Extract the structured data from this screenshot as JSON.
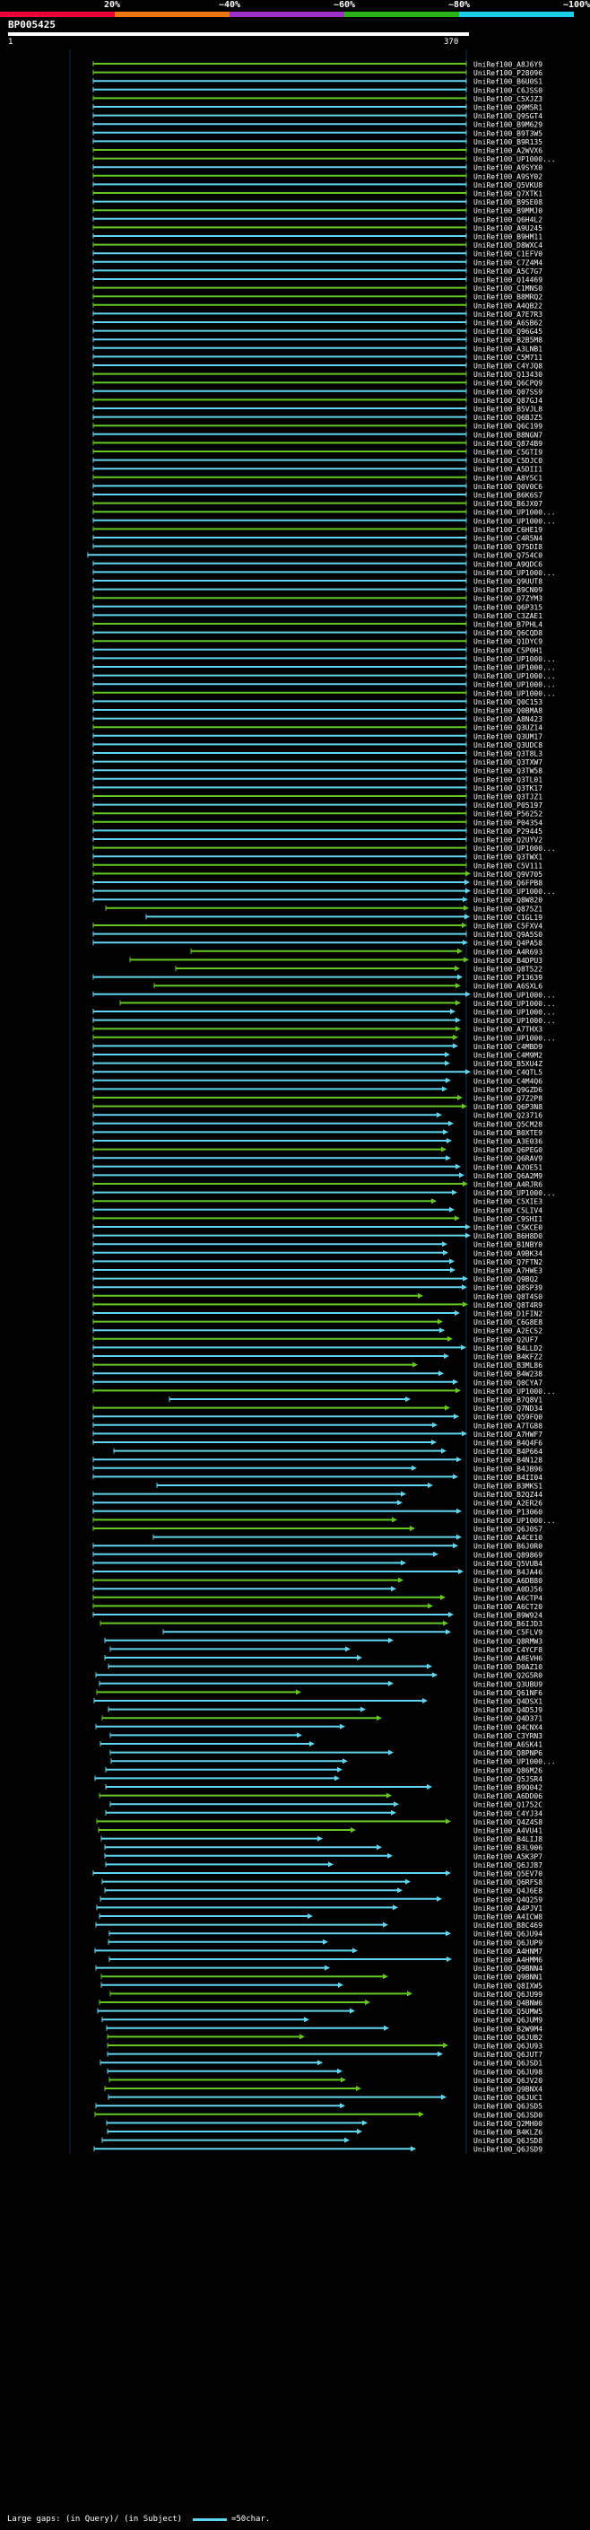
{
  "legend": {
    "segments": [
      {
        "label": "",
        "color": "#e8003b"
      },
      {
        "label": "20%",
        "color": "#f0780a"
      },
      {
        "label": "~40%",
        "color": "#a030c8"
      },
      {
        "label": "~60%",
        "color": "#28b414"
      },
      {
        "label": "~80%",
        "color": "#18d0e8"
      },
      {
        "label": "~100%",
        "color": ""
      }
    ]
  },
  "query": {
    "name": "BP005425",
    "start_label": "1",
    "end_label": "370"
  },
  "colors": {
    "cyan": "#5fd7f0",
    "green": "#64c81e",
    "white": "#ffffff",
    "background": "#000000"
  },
  "hits": [
    "UniRef100_A8J6Y9",
    "UniRef100_P28096",
    "UniRef100_B6U0S1",
    "UniRef100_C6JSS0",
    "UniRef100_C5XJZ3",
    "UniRef100_Q9M5R1",
    "UniRef100_Q9SGT4",
    "UniRef100_B9M629",
    "UniRef100_B9T3W5",
    "UniRef100_B9R135",
    "UniRef100_A2WVX6",
    "UniRef100_UP1000...",
    "UniRef100_A9SYX0",
    "UniRef100_A9SY02",
    "UniRef100_Q5VKU8",
    "UniRef100_Q7XTK1",
    "UniRef100_B9SE08",
    "UniRef100_B9MMJ0",
    "UniRef100_Q6H4L2",
    "UniRef100_A9U245",
    "UniRef100_B9HM11",
    "UniRef100_D8WXC4",
    "UniRef100_C1EFV0",
    "UniRef100_C7Z4M4",
    "UniRef100_A5C7G7",
    "UniRef100_Q14469",
    "UniRef100_C1MNS0",
    "UniRef100_B8MRQ2",
    "UniRef100_A4QB22",
    "UniRef100_A7E7R3",
    "UniRef100_A6SB62",
    "UniRef100_Q96G45",
    "UniRef100_B2B5M8",
    "UniRef100_A3LNB1",
    "UniRef100_C5M711",
    "UniRef100_C4YJQ8",
    "UniRef100_Q13430",
    "UniRef100_Q6CPQ9",
    "UniRef100_Q07SS9",
    "UniRef100_Q87GJ4",
    "UniRef100_B5VJL8",
    "UniRef100_Q6BJZ5",
    "UniRef100_Q6C199",
    "UniRef100_B8NGN7",
    "UniRef100_Q874B9",
    "UniRef100_C5GTI9",
    "UniRef100_C5DJC0",
    "UniRef100_A5DII1",
    "UniRef100_A8Y5C1",
    "UniRef100_Q0V0C6",
    "UniRef100_B6K6S7",
    "UniRef100_B6JX07",
    "UniRef100_UP1000...",
    "UniRef100_UP1000...",
    "UniRef100_C6HE19",
    "UniRef100_C4R5N4",
    "UniRef100_Q75DI8",
    "UniRef100_Q754C0",
    "UniRef100_A9QDC6",
    "UniRef100_UP1000...",
    "UniRef100_Q9UUT8",
    "UniRef100_B9CN09",
    "UniRef100_Q7ZYM3",
    "UniRef100_Q6P315",
    "UniRef100_C3ZAE1",
    "UniRef100_B7PHL4",
    "UniRef100_Q6CQD8",
    "UniRef100_Q1DYC9",
    "UniRef100_C5P0H1",
    "UniRef100_UP1000...",
    "UniRef100_UP1000...",
    "UniRef100_UP1000...",
    "UniRef100_UP1000...",
    "UniRef100_UP1000...",
    "UniRef100_Q0C153",
    "UniRef100_Q0BMA8",
    "UniRef100_A8N423",
    "UniRef100_Q3UZ14",
    "UniRef100_Q3UM17",
    "UniRef100_Q3UDC8",
    "UniRef100_Q3T8L3",
    "UniRef100_Q3TXW7",
    "UniRef100_Q3TW58",
    "UniRef100_Q3TL01",
    "UniRef100_Q3TK17",
    "UniRef100_Q3TJZ1",
    "UniRef100_P05197",
    "UniRef100_P56252",
    "UniRef100_P04354",
    "UniRef100_P29445",
    "UniRef100_Q2UYV2",
    "UniRef100_UP1000...",
    "UniRef100_Q3TWX1",
    "UniRef100_C5V111",
    "UniRef100_Q9V705",
    "UniRef100_Q6FPB8",
    "UniRef100_UP1000...",
    "UniRef100_Q8W820",
    "UniRef100_Q875Z1",
    "UniRef100_C1GL19",
    "UniRef100_C5FXV4",
    "UniRef100_Q9A5S0",
    "UniRef100_Q4PA58",
    "UniRef100_A4R693",
    "UniRef100_B4DPU3",
    "UniRef100_Q8T522",
    "UniRef100_P13639",
    "UniRef100_A6SXL6",
    "UniRef100_UP1000...",
    "UniRef100_UP1000...",
    "UniRef100_UP1000...",
    "UniRef100_UP1000...",
    "UniRef100_A7THX3",
    "UniRef100_UP1000...",
    "UniRef100_C4MBD9",
    "UniRef100_C4M9M2",
    "UniRef100_B5XU4Z",
    "UniRef100_C4QTL5",
    "UniRef100_C4M4Q6",
    "UniRef100_Q9GZD6",
    "UniRef100_Q7Z2P8",
    "UniRef100_Q6P3N8",
    "UniRef100_Q23716",
    "UniRef100_Q5CM28",
    "UniRef100_B0XTE9",
    "UniRef100_A3E036",
    "UniRef100_Q6PEG0",
    "UniRef100_Q6RAV9",
    "UniRef100_A2OE51",
    "UniRef100_Q6A2M9",
    "UniRef100_A4RJR6",
    "UniRef100_UP1000...",
    "UniRef100_C5XIE3",
    "UniRef100_C5LIV4",
    "UniRef100_C9SHI1",
    "UniRef100_C5KCE0",
    "UniRef100_B6H8D0",
    "UniRef100_B1NBY0",
    "UniRef100_A9BK34",
    "UniRef100_Q7FTN2",
    "UniRef100_A7HWE3",
    "UniRef100_Q9BQ2",
    "UniRef100_Q8SP39",
    "UniRef100_Q8T4S0",
    "UniRef100_Q8T4R9",
    "UniRef100_D1FIN2",
    "UniRef100_C6G8E8",
    "UniRef100_A2ECS2",
    "UniRef100_Q2UF7",
    "UniRef100_B4LLD2",
    "UniRef100_B4KFZ2",
    "UniRef100_B3ML86",
    "UniRef100_B4W238",
    "UniRef100_Q0CYA7",
    "UniRef100_UP1000...",
    "UniRef100_B7Q8V1",
    "UniRef100_Q7ND34",
    "UniRef100_Q59FQ0",
    "UniRef100_A7TG88",
    "UniRef100_A7HWF7",
    "UniRef100_B4Q4F6",
    "UniRef100_B4P664",
    "UniRef100_B4N128",
    "UniRef100_B4JB96",
    "UniRef100_B4II04",
    "UniRef100_B3MKS1",
    "UniRef100_B2QZ44",
    "UniRef100_A2ER26",
    "UniRef100_P13060",
    "UniRef100_UP1000...",
    "UniRef100_Q6J0S7",
    "UniRef100_A4CE10",
    "UniRef100_B6J0R0",
    "UniRef100_Q89869",
    "UniRef100_Q5VUB4",
    "UniRef100_B4JA46",
    "UniRef100_A6DB80",
    "UniRef100_A0DJ56",
    "UniRef100_A6CTP4",
    "UniRef100_A6CT20",
    "UniRef100_B9W924",
    "UniRef100_B6IJD3",
    "UniRef100_C5FLV9",
    "UniRef100_Q8RMW3",
    "UniRef100_C4YCF8",
    "UniRef100_A8EVH6",
    "UniRef100_D0AZ10",
    "UniRef100_Q2G5R0",
    "UniRef100_Q3UBU9",
    "UniRef100_Q61NF6",
    "UniRef100_Q4DSX1",
    "UniRef100_Q4D5J9",
    "UniRef100_Q4D371",
    "UniRef100_Q4CNX4",
    "UniRef100_C3YRN3",
    "UniRef100_A6SK41",
    "UniRef100_Q8PNP6",
    "UniRef100_UP1000...",
    "UniRef100_Q86M26",
    "UniRef100_Q5JSR4",
    "UniRef100_B9Q042",
    "UniRef100_A6DD06",
    "UniRef100_Q1752C",
    "UniRef100_C4YJ34",
    "UniRef100_Q4Z4S8",
    "UniRef100_A4VU41",
    "UniRef100_B4LIJ8",
    "UniRef100_B3L906",
    "UniRef100_A5K3P7",
    "UniRef100_Q6JJ87",
    "UniRef100_Q5EV70",
    "UniRef100_Q6RFS8",
    "UniRef100_Q4J6E8",
    "UniRef100_Q4Q259",
    "UniRef100_A4PJV1",
    "UniRef100_A4ICW8",
    "UniRef100_B8C469",
    "UniRef100_Q6JU94",
    "UniRef100_Q6JUP9",
    "UniRef100_A4HNM7",
    "UniRef100_A4HMM6",
    "UniRef100_Q9BNN4",
    "UniRef100_Q9BNN1",
    "UniRef100_Q8IXW5",
    "UniRef100_Q6JU99",
    "UniRef100_Q4BNW6",
    "UniRef100_Q5UMW5",
    "UniRef100_Q6JUM9",
    "UniRef100_B2W9M4",
    "UniRef100_Q6JUB2",
    "UniRef100_Q6JU93",
    "UniRef100_Q6JUT7",
    "UniRef100_Q6JSD1",
    "UniRef100_Q6JU98",
    "UniRef100_Q6JV20",
    "UniRef100_Q9BNX4",
    "UniRef100_Q6JUC1",
    "UniRef100_Q6JSD5",
    "UniRef100_Q6JSD0",
    "UniRef100_Q2MH00",
    "UniRef100_B4KLZ6",
    "UniRef100_Q6JSD8",
    "UniRef100_Q6JSD9"
  ],
  "footer": {
    "large_gaps_label": "Large gaps:",
    "in_query": "(in Query)/",
    "in_subject": "(in Subject)",
    "scale_label": "=50char."
  }
}
